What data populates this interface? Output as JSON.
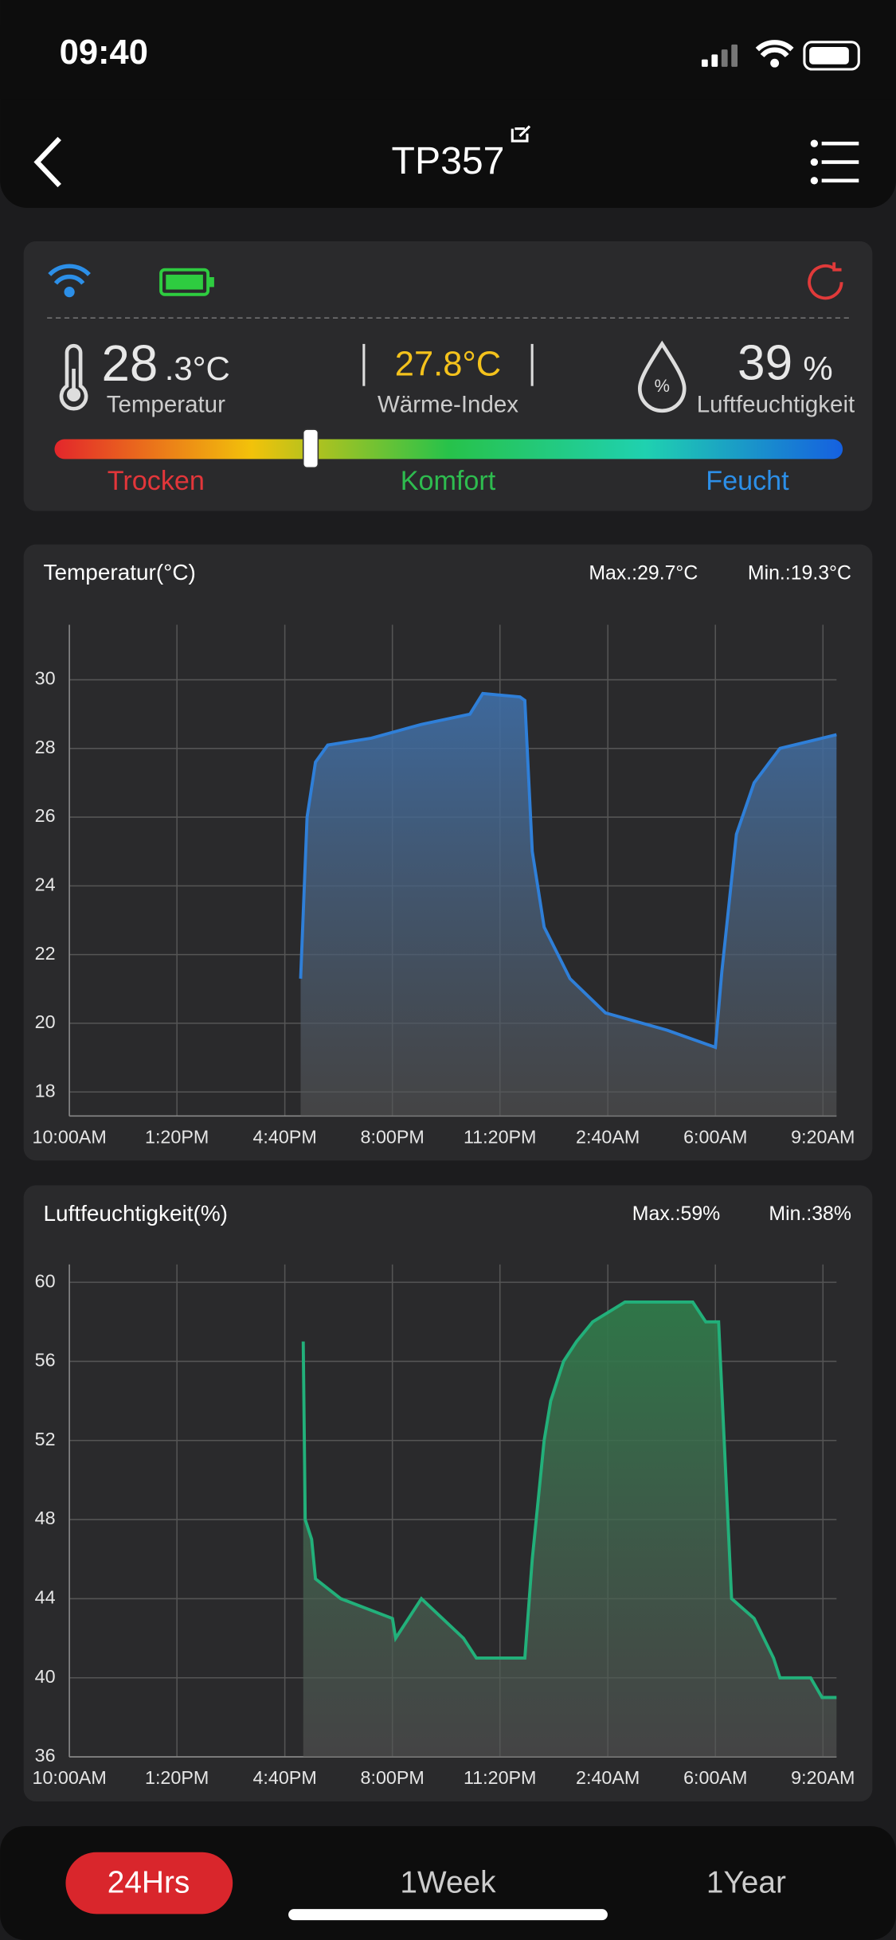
{
  "status_bar": {
    "time": "09:40"
  },
  "header": {
    "title": "TP357"
  },
  "summary": {
    "temp_int": "28",
    "temp_frac": ".3°C",
    "temp_label": "Temperatur",
    "heat_index": "27.8°C",
    "heat_label": "Wärme-Index",
    "hum_value": "39",
    "hum_unit": "%",
    "hum_label": "Luftfeuchtigkeit",
    "dry": "Trocken",
    "comfort": "Komfort",
    "wet": "Feucht"
  },
  "chart_data": [
    {
      "type": "line",
      "title": "Temperatur(°C)",
      "max_label": "Max.:29.7°C",
      "min_label": "Min.:19.3°C",
      "color": "#2f7fd8",
      "x": [
        7.16,
        7.36,
        7.62,
        8.0,
        9.35,
        10.9,
        12.4,
        12.8,
        13.95,
        14.1,
        14.33,
        14.7,
        15.5,
        16.6,
        18.5,
        20.0,
        20.2,
        20.65,
        21.2,
        22.0,
        23.75
      ],
      "values": [
        21.3,
        26,
        27.6,
        28.1,
        28.3,
        28.7,
        29.0,
        29.6,
        29.5,
        29.4,
        25,
        22.8,
        21.3,
        20.3,
        19.8,
        19.3,
        21.5,
        25.5,
        27,
        28,
        28.4
      ],
      "xlim": [
        0,
        23.75
      ],
      "ylim": [
        17.3,
        31.6
      ],
      "yticks": [
        18,
        20,
        22,
        24,
        26,
        28,
        30
      ],
      "xticks": [
        {
          "value": 0,
          "label": "10:00AM"
        },
        {
          "value": 3.33,
          "label": "1:20PM"
        },
        {
          "value": 6.67,
          "label": "4:40PM"
        },
        {
          "value": 10,
          "label": "8:00PM"
        },
        {
          "value": 13.33,
          "label": "11:20PM"
        },
        {
          "value": 16.67,
          "label": "2:40AM"
        },
        {
          "value": 20,
          "label": "6:00AM"
        },
        {
          "value": 23.33,
          "label": "9:20AM"
        }
      ],
      "grid": true
    },
    {
      "type": "line",
      "title": "Luftfeuchtigkeit(%)",
      "max_label": "Max.:59%",
      "min_label": "Min.:38%",
      "color": "#22b07a",
      "x": [
        7.24,
        7.3,
        7.5,
        7.62,
        8.4,
        10.0,
        10.1,
        10.9,
        12.2,
        12.6,
        14.1,
        14.33,
        14.7,
        14.9,
        15.3,
        15.7,
        16.2,
        17.2,
        19.3,
        19.7,
        20.1,
        20.5,
        21.2,
        21.8,
        22.0,
        22.95,
        23.3,
        23.75
      ],
      "values": [
        57,
        48,
        47,
        45,
        44,
        43,
        42,
        44,
        42,
        41,
        41,
        46,
        52,
        54,
        56,
        57,
        58,
        59,
        59,
        58,
        58,
        44,
        43,
        41,
        40,
        40,
        39,
        39
      ],
      "xlim": [
        0,
        23.75
      ],
      "ylim": [
        36,
        60.9
      ],
      "yticks": [
        36,
        40,
        44,
        48,
        52,
        56,
        60
      ],
      "xticks": [
        {
          "value": 0,
          "label": "10:00AM"
        },
        {
          "value": 3.33,
          "label": "1:20PM"
        },
        {
          "value": 6.67,
          "label": "4:40PM"
        },
        {
          "value": 10,
          "label": "8:00PM"
        },
        {
          "value": 13.33,
          "label": "11:20PM"
        },
        {
          "value": 16.67,
          "label": "2:40AM"
        },
        {
          "value": 20,
          "label": "6:00AM"
        },
        {
          "value": 23.33,
          "label": "9:20AM"
        }
      ],
      "grid": true
    }
  ],
  "tabs": [
    "24Hrs",
    "1Week",
    "1Year"
  ]
}
